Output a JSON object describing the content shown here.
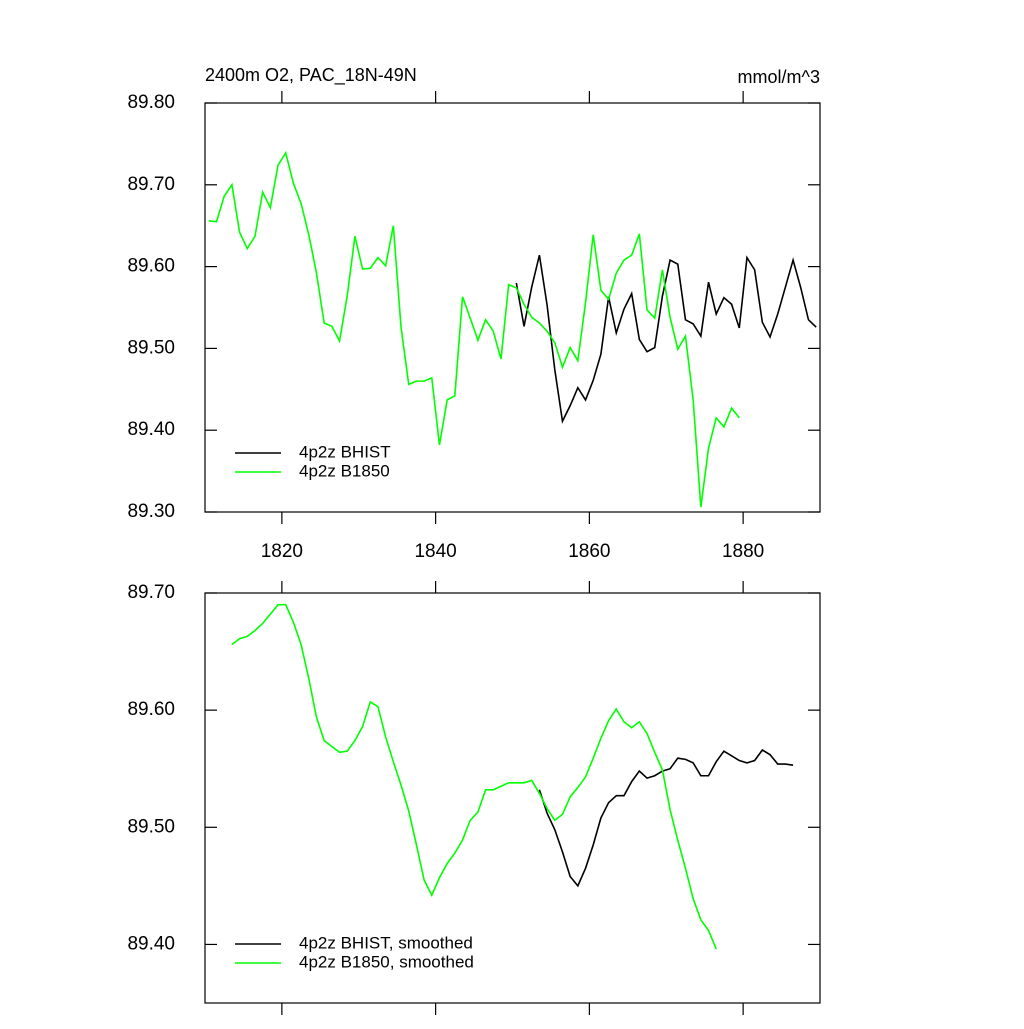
{
  "chart_data": [
    {
      "type": "line",
      "title": "2400m O2, PAC_18N-49N",
      "right_title": "mmol/m^3",
      "xlim": [
        1810,
        1890
      ],
      "xticks": [
        1820,
        1840,
        1860,
        1880
      ],
      "show_xtick_labels": true,
      "ylim": [
        89.3,
        89.8
      ],
      "yticks": [
        {
          "value": 89.3,
          "label": "89.30"
        },
        {
          "value": 89.4,
          "label": "89.40"
        },
        {
          "value": 89.5,
          "label": "89.50"
        },
        {
          "value": 89.6,
          "label": "89.60"
        },
        {
          "value": 89.7,
          "label": "89.70"
        },
        {
          "value": 89.8,
          "label": "89.80"
        }
      ],
      "legend": "lower left",
      "series": [
        {
          "name": "4p2z BHIST",
          "color": "#000000",
          "x": [
            1850.5,
            1851.5,
            1852.5,
            1853.5,
            1854.5,
            1855.5,
            1856.5,
            1857.5,
            1858.5,
            1859.5,
            1860.5,
            1861.5,
            1862.5,
            1863.5,
            1864.5,
            1865.5,
            1866.5,
            1867.5,
            1868.5,
            1869.5,
            1870.5,
            1871.5,
            1872.5,
            1873.5,
            1874.5,
            1875.5,
            1876.5,
            1877.5,
            1878.5,
            1879.5,
            1880.5,
            1881.5,
            1882.5,
            1883.5,
            1884.5,
            1885.5,
            1886.5,
            1887.5,
            1888.5,
            1889.5
          ],
          "values": [
            89.58,
            89.527,
            89.575,
            89.614,
            89.553,
            89.474,
            89.411,
            89.43,
            89.452,
            89.437,
            89.461,
            89.493,
            89.563,
            89.519,
            89.548,
            89.567,
            89.511,
            89.496,
            89.501,
            89.564,
            89.608,
            89.603,
            89.535,
            89.53,
            89.515,
            89.581,
            89.542,
            89.562,
            89.554,
            89.525,
            89.611,
            89.596,
            89.532,
            89.514,
            89.542,
            89.575,
            89.608,
            89.574,
            89.535,
            89.526
          ]
        },
        {
          "name": "4p2z B1850",
          "color": "#00ff00",
          "x": [
            1810.5,
            1811.5,
            1812.5,
            1813.5,
            1814.5,
            1815.5,
            1816.5,
            1817.5,
            1818.5,
            1819.5,
            1820.5,
            1821.5,
            1822.5,
            1823.5,
            1824.5,
            1825.5,
            1826.5,
            1827.5,
            1828.5,
            1829.5,
            1830.5,
            1831.5,
            1832.5,
            1833.5,
            1834.5,
            1835.5,
            1836.5,
            1837.5,
            1838.5,
            1839.5,
            1840.5,
            1841.5,
            1842.5,
            1843.5,
            1844.5,
            1845.5,
            1846.5,
            1847.5,
            1848.5,
            1849.5,
            1850.5,
            1851.5,
            1852.5,
            1853.5,
            1854.5,
            1855.5,
            1856.5,
            1857.5,
            1858.5,
            1859.5,
            1860.5,
            1861.5,
            1862.5,
            1863.5,
            1864.5,
            1865.5,
            1866.5,
            1867.5,
            1868.5,
            1869.5,
            1870.5,
            1871.5,
            1872.5,
            1873.5,
            1874.5,
            1875.5,
            1876.5,
            1877.5,
            1878.5,
            1879.5
          ],
          "values": [
            89.656,
            89.655,
            89.686,
            89.7,
            89.642,
            89.622,
            89.637,
            89.691,
            89.672,
            89.724,
            89.739,
            89.702,
            89.677,
            89.639,
            89.592,
            89.531,
            89.527,
            89.509,
            89.564,
            89.637,
            89.597,
            89.598,
            89.611,
            89.601,
            89.65,
            89.526,
            89.456,
            89.46,
            89.46,
            89.464,
            89.382,
            89.437,
            89.442,
            89.563,
            89.537,
            89.51,
            89.535,
            89.521,
            89.487,
            89.578,
            89.574,
            89.554,
            89.538,
            89.531,
            89.521,
            89.507,
            89.477,
            89.501,
            89.485,
            89.556,
            89.639,
            89.571,
            89.56,
            89.592,
            89.608,
            89.614,
            89.64,
            89.547,
            89.537,
            89.596,
            89.538,
            89.499,
            89.515,
            89.437,
            89.306,
            89.378,
            89.415,
            89.404,
            89.427,
            89.415
          ]
        }
      ]
    },
    {
      "type": "line",
      "xlim": [
        1810,
        1890
      ],
      "xticks": [
        1820,
        1840,
        1860,
        1880
      ],
      "show_xtick_labels": false,
      "ylim": [
        89.35,
        89.7
      ],
      "yticks": [
        {
          "value": 89.4,
          "label": "89.40"
        },
        {
          "value": 89.5,
          "label": "89.50"
        },
        {
          "value": 89.6,
          "label": "89.60"
        },
        {
          "value": 89.7,
          "label": "89.70"
        }
      ],
      "legend": "lower left",
      "series": [
        {
          "name": "4p2z BHIST, smoothed",
          "color": "#000000",
          "x": [
            1853.5,
            1854.5,
            1855.5,
            1856.5,
            1857.5,
            1858.5,
            1859.5,
            1860.5,
            1861.5,
            1862.5,
            1863.5,
            1864.5,
            1865.5,
            1866.5,
            1867.5,
            1868.5,
            1869.5,
            1870.5,
            1871.5,
            1872.5,
            1873.5,
            1874.5,
            1875.5,
            1876.5,
            1877.5,
            1878.5,
            1879.5,
            1880.5,
            1881.5,
            1882.5,
            1883.5,
            1884.5,
            1885.5,
            1886.5
          ],
          "values": [
            89.532,
            89.512,
            89.498,
            89.479,
            89.458,
            89.45,
            89.465,
            89.485,
            89.508,
            89.521,
            89.527,
            89.527,
            89.539,
            89.548,
            89.542,
            89.544,
            89.548,
            89.55,
            89.559,
            89.558,
            89.555,
            89.544,
            89.544,
            89.556,
            89.565,
            89.561,
            89.557,
            89.555,
            89.557,
            89.566,
            89.562,
            89.554,
            89.554,
            89.553
          ]
        },
        {
          "name": "4p2z B1850, smoothed",
          "color": "#00ff00",
          "x": [
            1813.5,
            1814.5,
            1815.5,
            1816.5,
            1817.5,
            1818.5,
            1819.5,
            1820.5,
            1821.5,
            1822.5,
            1823.5,
            1824.5,
            1825.5,
            1826.5,
            1827.5,
            1828.5,
            1829.5,
            1830.5,
            1831.5,
            1832.5,
            1833.5,
            1834.5,
            1835.5,
            1836.5,
            1837.5,
            1838.5,
            1839.5,
            1840.5,
            1841.5,
            1842.5,
            1843.5,
            1844.5,
            1845.5,
            1846.5,
            1847.5,
            1848.5,
            1849.5,
            1850.5,
            1851.5,
            1852.5,
            1853.5,
            1854.5,
            1855.5,
            1856.5,
            1857.5,
            1858.5,
            1859.5,
            1860.5,
            1861.5,
            1862.5,
            1863.5,
            1864.5,
            1865.5,
            1866.5,
            1867.5,
            1868.5,
            1869.5,
            1870.5,
            1871.5,
            1872.5,
            1873.5,
            1874.5,
            1875.5,
            1876.5
          ],
          "values": [
            89.656,
            89.661,
            89.663,
            89.668,
            89.674,
            89.682,
            89.69,
            89.69,
            89.675,
            89.656,
            89.627,
            89.594,
            89.574,
            89.569,
            89.564,
            89.565,
            89.574,
            89.586,
            89.607,
            89.603,
            89.577,
            89.556,
            89.536,
            89.514,
            89.485,
            89.455,
            89.442,
            89.457,
            89.469,
            89.478,
            89.489,
            89.506,
            89.513,
            89.532,
            89.532,
            89.535,
            89.538,
            89.538,
            89.538,
            89.54,
            89.529,
            89.516,
            89.506,
            89.511,
            89.526,
            89.534,
            89.543,
            89.559,
            89.576,
            89.591,
            89.601,
            89.59,
            89.585,
            89.59,
            89.58,
            89.564,
            89.549,
            89.515,
            89.489,
            89.465,
            89.439,
            89.421,
            89.412,
            89.396
          ]
        }
      ]
    }
  ]
}
